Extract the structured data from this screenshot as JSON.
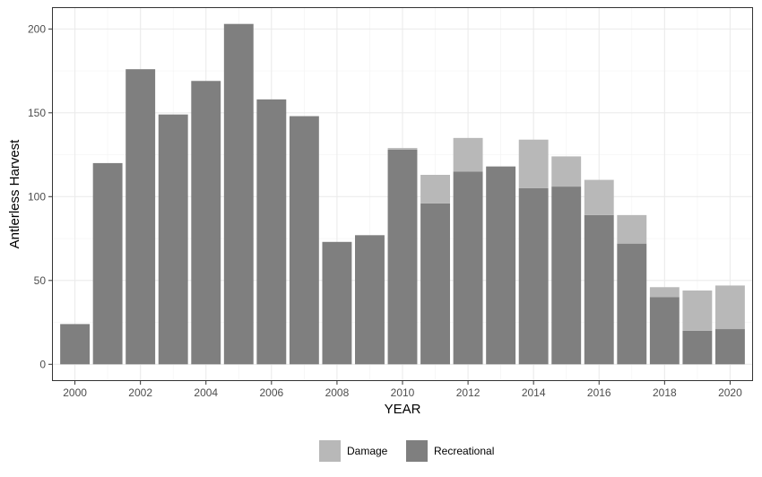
{
  "chart_data": {
    "type": "bar",
    "stacked": true,
    "xlabel": "YEAR",
    "ylabel": "Antlerless Harvest",
    "ylim": [
      -10,
      213
    ],
    "xlim": [
      1999.3,
      2020.7
    ],
    "x_ticks": [
      2000,
      2002,
      2004,
      2006,
      2008,
      2010,
      2012,
      2014,
      2016,
      2018,
      2020
    ],
    "y_ticks": [
      0,
      50,
      100,
      150,
      200
    ],
    "grid": true,
    "legend_position": "bottom",
    "categories": [
      2000,
      2001,
      2002,
      2003,
      2004,
      2005,
      2006,
      2007,
      2008,
      2009,
      2010,
      2011,
      2012,
      2013,
      2014,
      2015,
      2016,
      2017,
      2018,
      2019,
      2020
    ],
    "series": [
      {
        "name": "Recreational",
        "color": "#7f7f7f",
        "values": [
          24,
          120,
          176,
          149,
          169,
          203,
          158,
          148,
          73,
          77,
          128,
          96,
          115,
          118,
          105,
          106,
          89,
          72,
          40,
          20,
          21
        ]
      },
      {
        "name": "Damage",
        "color": "#b8b8b8",
        "values": [
          0,
          0,
          0,
          0,
          0,
          0,
          0,
          0,
          0,
          0,
          1,
          17,
          20,
          0,
          29,
          18,
          21,
          17,
          6,
          24,
          26
        ]
      }
    ],
    "legend": [
      {
        "name": "Damage",
        "color": "#b8b8b8"
      },
      {
        "name": "Recreational",
        "color": "#7f7f7f"
      }
    ]
  }
}
